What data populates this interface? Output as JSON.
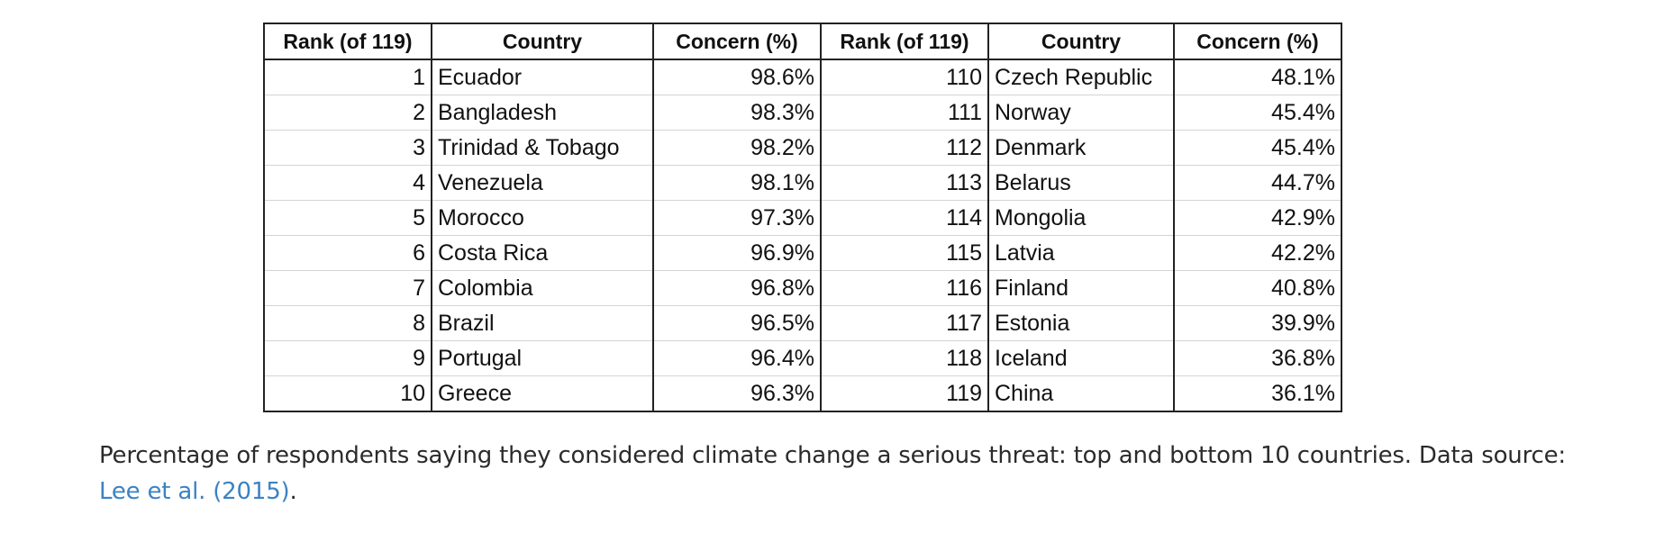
{
  "table": {
    "headers": [
      "Rank (of 119)",
      "Country",
      "Concern (%)",
      "Rank (of 119)",
      "Country",
      "Concern (%)"
    ],
    "rows": [
      [
        "1",
        "Ecuador",
        "98.6%",
        "110",
        "Czech Republic",
        "48.1%"
      ],
      [
        "2",
        "Bangladesh",
        "98.3%",
        "111",
        "Norway",
        "45.4%"
      ],
      [
        "3",
        "Trinidad & Tobago",
        "98.2%",
        "112",
        "Denmark",
        "45.4%"
      ],
      [
        "4",
        "Venezuela",
        "98.1%",
        "113",
        "Belarus",
        "44.7%"
      ],
      [
        "5",
        "Morocco",
        "97.3%",
        "114",
        "Mongolia",
        "42.9%"
      ],
      [
        "6",
        "Costa Rica",
        "96.9%",
        "115",
        "Latvia",
        "42.2%"
      ],
      [
        "7",
        "Colombia",
        "96.8%",
        "116",
        "Finland",
        "40.8%"
      ],
      [
        "8",
        "Brazil",
        "96.5%",
        "117",
        "Estonia",
        "39.9%"
      ],
      [
        "9",
        "Portugal",
        "96.4%",
        "118",
        "Iceland",
        "36.8%"
      ],
      [
        "10",
        "Greece",
        "96.3%",
        "119",
        "China",
        "36.1%"
      ]
    ]
  },
  "caption": {
    "text": "Percentage of respondents saying they considered climate change a serious threat: top and bottom 10 countries. Data source: ",
    "link_text": "Lee et al. (2015)",
    "suffix": "."
  },
  "colors": {
    "link": "#3b82c4",
    "border": "#222222",
    "row_divider": "#d4d4d4"
  }
}
